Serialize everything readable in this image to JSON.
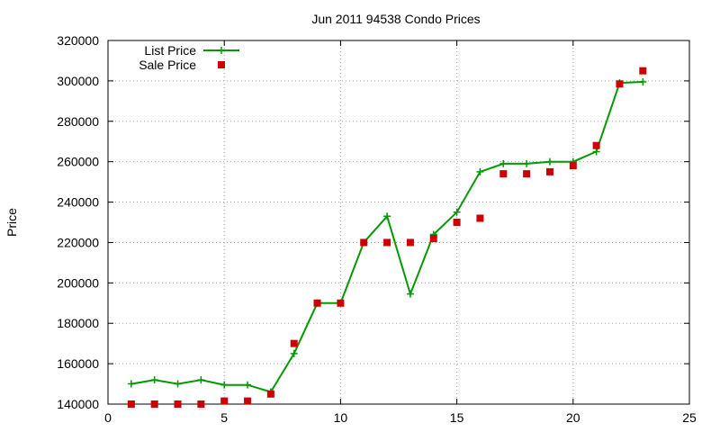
{
  "chart_data": {
    "type": "line",
    "title": "Jun 2011 94538 Condo Prices",
    "xlabel": "",
    "ylabel": "Price",
    "xlim": [
      0,
      25
    ],
    "ylim": [
      140000,
      320000
    ],
    "x_ticks": [
      0,
      5,
      10,
      15,
      20,
      25
    ],
    "y_ticks": [
      140000,
      160000,
      180000,
      200000,
      220000,
      240000,
      260000,
      280000,
      300000,
      320000
    ],
    "grid": true,
    "legend_position": "top-left",
    "series": [
      {
        "name": "List Price",
        "style": "line-with-plus-markers",
        "color": "#009900",
        "x": [
          1,
          2,
          3,
          4,
          5,
          6,
          7,
          8,
          9,
          10,
          11,
          12,
          13,
          14,
          15,
          16,
          17,
          18,
          19,
          20,
          21,
          22,
          23
        ],
        "values": [
          150000,
          152000,
          150000,
          152000,
          149500,
          149500,
          146000,
          165000,
          190000,
          190000,
          220000,
          233000,
          194500,
          224000,
          235000,
          255000,
          259000,
          259000,
          260000,
          260000,
          265000,
          299000,
          299500
        ]
      },
      {
        "name": "Sale Price",
        "style": "square-points",
        "color": "#cc0000",
        "x": [
          1,
          2,
          3,
          4,
          5,
          6,
          7,
          8,
          9,
          10,
          11,
          12,
          13,
          14,
          15,
          16,
          17,
          18,
          19,
          20,
          21,
          22,
          23
        ],
        "values": [
          140000,
          140000,
          140000,
          140000,
          141500,
          141500,
          145000,
          170000,
          190000,
          190000,
          220000,
          220000,
          220000,
          222000,
          230000,
          232000,
          254000,
          254000,
          255000,
          258000,
          268000,
          298500,
          305000
        ]
      }
    ]
  }
}
